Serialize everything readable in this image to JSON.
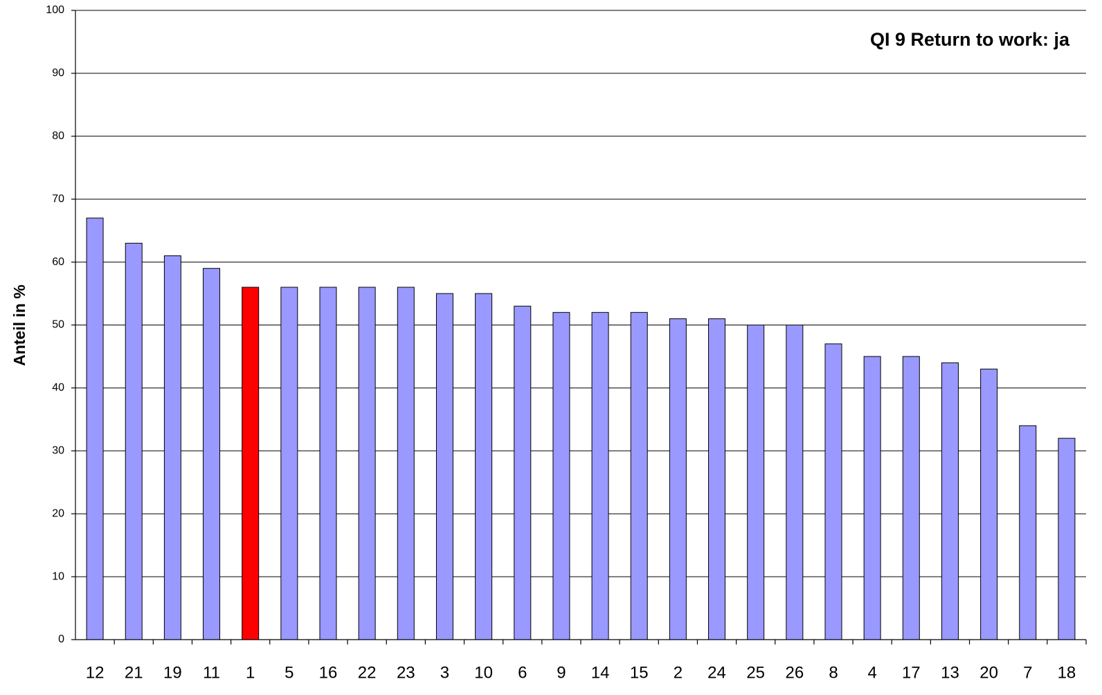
{
  "chart_data": {
    "type": "bar",
    "title": "QI 9 Return to work: ja",
    "y_label": "Anteil in %",
    "categories": [
      "12",
      "21",
      "19",
      "11",
      "1",
      "5",
      "16",
      "22",
      "23",
      "3",
      "10",
      "6",
      "9",
      "14",
      "15",
      "2",
      "24",
      "25",
      "26",
      "8",
      "4",
      "17",
      "13",
      "20",
      "7",
      "18"
    ],
    "values": [
      67,
      63,
      61,
      59,
      56,
      56,
      56,
      56,
      56,
      55,
      55,
      53,
      52,
      52,
      52,
      51,
      51,
      50,
      50,
      47,
      45,
      45,
      44,
      43,
      34,
      32
    ],
    "colors": [
      "#9999ff",
      "#9999ff",
      "#9999ff",
      "#9999ff",
      "#ff0000",
      "#9999ff",
      "#9999ff",
      "#9999ff",
      "#9999ff",
      "#9999ff",
      "#9999ff",
      "#9999ff",
      "#9999ff",
      "#9999ff",
      "#9999ff",
      "#9999ff",
      "#9999ff",
      "#9999ff",
      "#9999ff",
      "#9999ff",
      "#9999ff",
      "#9999ff",
      "#9999ff",
      "#9999ff",
      "#9999ff",
      "#9999ff"
    ],
    "ylim": [
      0,
      100
    ],
    "yticks": [
      0,
      10,
      20,
      30,
      40,
      50,
      60,
      70,
      80,
      90,
      100
    ],
    "grid": true
  }
}
